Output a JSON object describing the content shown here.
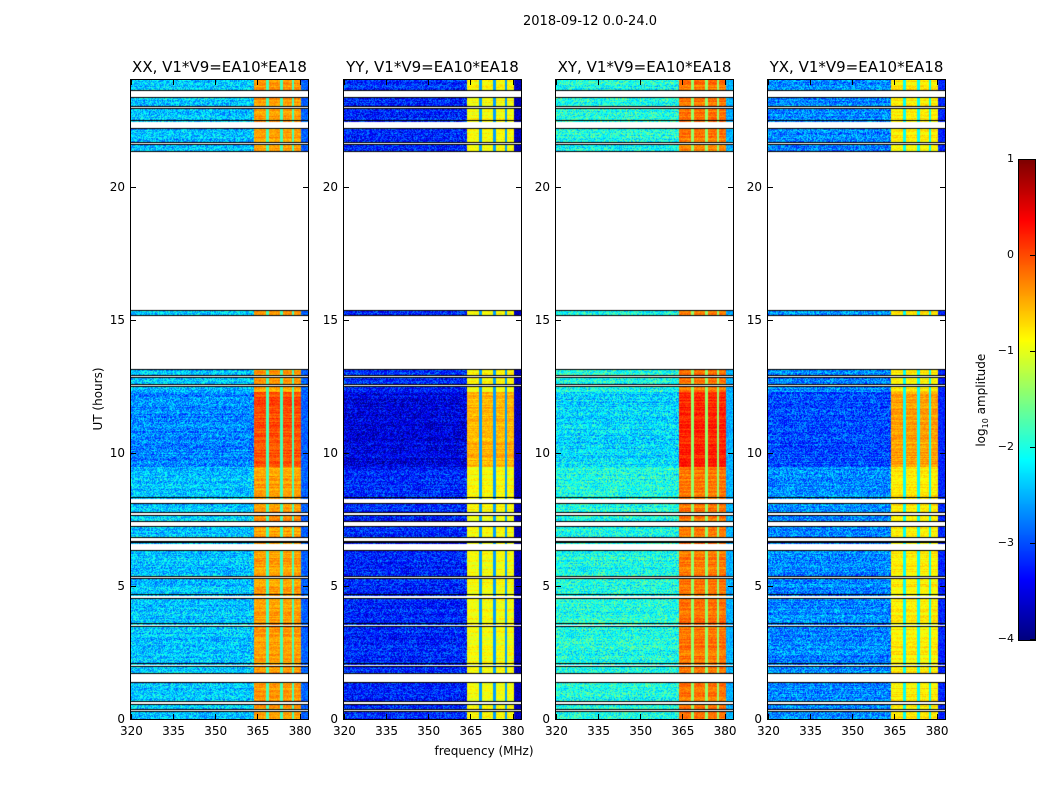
{
  "suptitle": "2018-09-12 0.0-24.0",
  "chart_data": {
    "type": "heatmap",
    "title": "2018-09-12 0.0-24.0",
    "xlabel": "frequency (MHz)",
    "ylabel": "UT (hours)",
    "xlim": [
      320,
      383
    ],
    "ylim": [
      0,
      24
    ],
    "xticks": [
      320,
      335,
      350,
      365,
      380
    ],
    "yticks": [
      0,
      5,
      10,
      15,
      20
    ],
    "panels": [
      {
        "title": "XX, V1*V9=EA10*EA18",
        "base_level": -2.4,
        "band_level": -0.4
      },
      {
        "title": "YY, V1*V9=EA10*EA18",
        "base_level": -3.2,
        "band_level": -0.9
      },
      {
        "title": "XY, V1*V9=EA10*EA18",
        "base_level": -2.0,
        "band_level": -0.2
      },
      {
        "title": "YX, V1*V9=EA10*EA18",
        "base_level": -2.7,
        "band_level": -0.8
      }
    ],
    "bright_band_mhz": [
      363.5,
      380.5
    ],
    "rfi_notches_mhz": [
      368.5,
      373.5,
      377.5
    ],
    "flagged_gaps_hours": [
      [
        23.35,
        23.6
      ],
      [
        22.95,
        23.0
      ],
      [
        22.2,
        22.45
      ],
      [
        21.6,
        21.65
      ],
      [
        15.35,
        21.3
      ],
      [
        13.15,
        15.15
      ],
      [
        12.85,
        12.9
      ],
      [
        12.5,
        12.55
      ],
      [
        8.1,
        8.3
      ],
      [
        7.65,
        7.75
      ],
      [
        7.25,
        7.4
      ],
      [
        6.7,
        6.8
      ],
      [
        6.35,
        6.6
      ],
      [
        5.3,
        5.35
      ],
      [
        4.55,
        4.65
      ],
      [
        3.5,
        3.55
      ],
      [
        2.0,
        2.05
      ],
      [
        1.4,
        1.7
      ],
      [
        0.55,
        0.65
      ],
      [
        0.3,
        0.35
      ]
    ],
    "bright_period_hours": [
      9.5,
      12.3
    ],
    "colorbar": {
      "label": "log10 amplitude",
      "label_main": "log",
      "label_sub": "10",
      "label_rest": " amplitude",
      "range": [
        -4,
        1
      ],
      "ticks": [
        "1",
        "0",
        "−1",
        "−2",
        "−3",
        "−4"
      ],
      "colormap": "jet"
    }
  }
}
